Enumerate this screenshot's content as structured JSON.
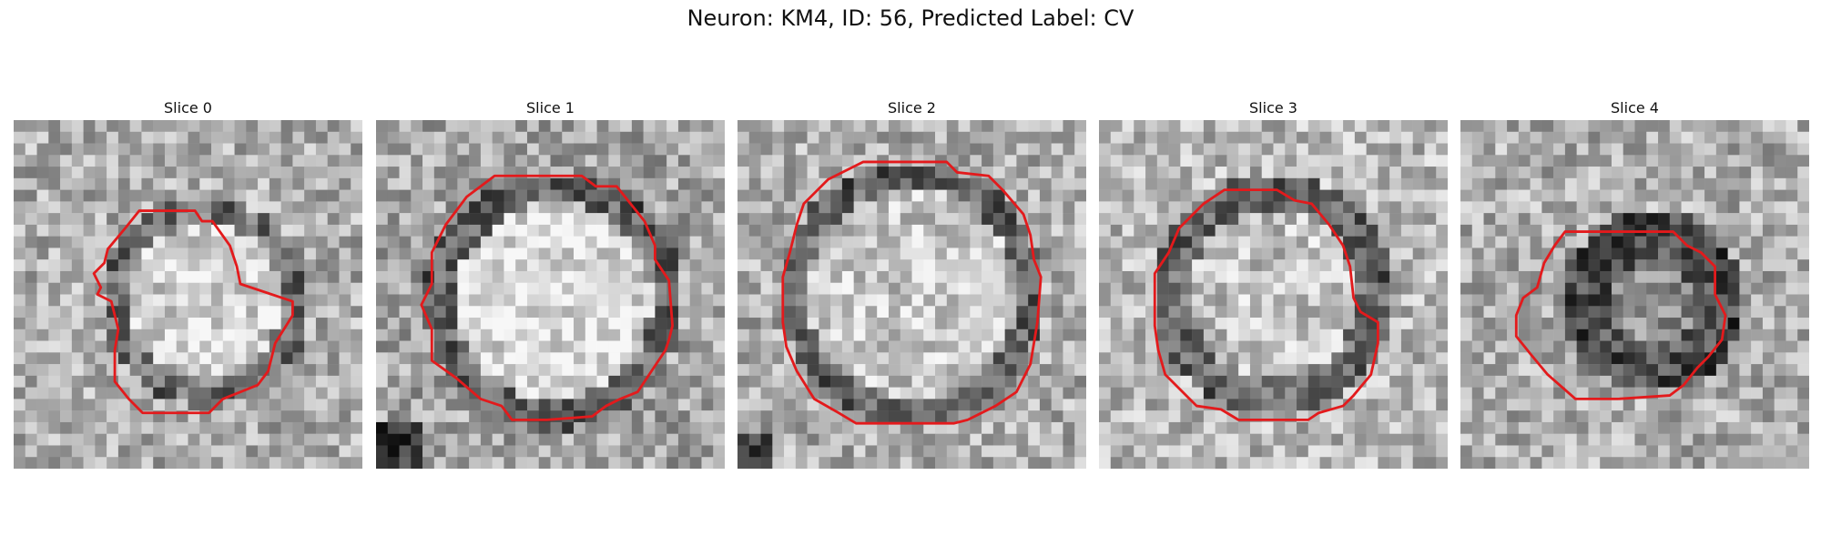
{
  "figure": {
    "title": "Neuron: KM4, ID: 56, Predicted Label: CV"
  },
  "colors": {
    "contour": "#e31a1c"
  },
  "slices": [
    {
      "title": "Slice 0"
    },
    {
      "title": "Slice 1"
    },
    {
      "title": "Slice 2"
    },
    {
      "title": "Slice 3"
    },
    {
      "title": "Slice 4"
    }
  ]
}
